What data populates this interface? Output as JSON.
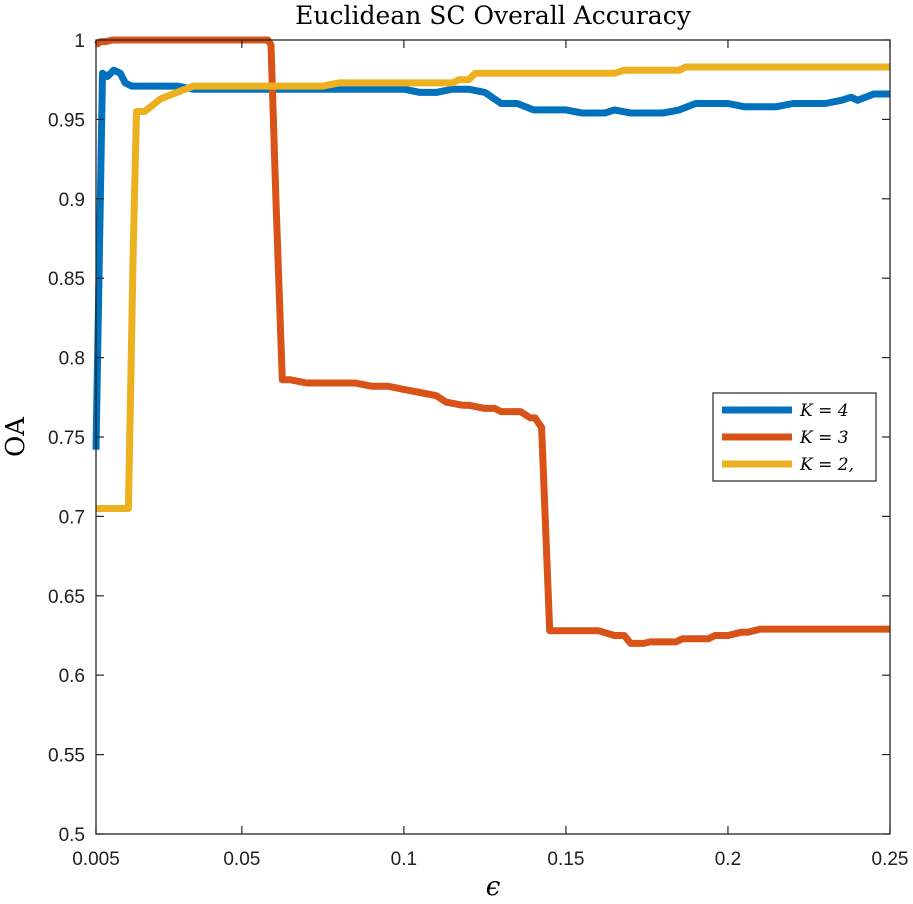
{
  "chart_data": {
    "type": "line",
    "title": "Euclidean SC Overall Accuracy",
    "xlabel": "ϵ",
    "ylabel": "OA",
    "xlim": [
      0.005,
      0.25
    ],
    "ylim": [
      0.5,
      1.0
    ],
    "x_ticks": [
      0.005,
      0.05,
      0.1,
      0.15,
      0.2,
      0.25
    ],
    "x_tick_labels": [
      "0.005",
      "0.05",
      "0.1",
      "0.15",
      "0.2",
      "0.25"
    ],
    "y_ticks": [
      0.5,
      0.55,
      0.6,
      0.65,
      0.7,
      0.75,
      0.8,
      0.85,
      0.9,
      0.95,
      1.0
    ],
    "y_tick_labels": [
      "0.5",
      "0.55",
      "0.6",
      "0.65",
      "0.7",
      "0.75",
      "0.8",
      "0.85",
      "0.9",
      "0.95",
      "1"
    ],
    "grid": false,
    "legend_position": "right",
    "series": [
      {
        "name": "K = 4",
        "color": "#0072BD",
        "x": [
          0.005,
          0.007,
          0.0085,
          0.0105,
          0.0125,
          0.014,
          0.016,
          0.02,
          0.025,
          0.03,
          0.035,
          0.04,
          0.05,
          0.06,
          0.07,
          0.08,
          0.09,
          0.1,
          0.105,
          0.11,
          0.115,
          0.12,
          0.125,
          0.13,
          0.135,
          0.14,
          0.145,
          0.15,
          0.155,
          0.16,
          0.162,
          0.165,
          0.17,
          0.175,
          0.18,
          0.185,
          0.19,
          0.195,
          0.2,
          0.205,
          0.21,
          0.215,
          0.22,
          0.225,
          0.23,
          0.235,
          0.238,
          0.24,
          0.245,
          0.25
        ],
        "y": [
          0.742,
          0.979,
          0.977,
          0.981,
          0.979,
          0.973,
          0.971,
          0.971,
          0.971,
          0.971,
          0.969,
          0.969,
          0.969,
          0.969,
          0.969,
          0.969,
          0.969,
          0.969,
          0.967,
          0.967,
          0.969,
          0.969,
          0.967,
          0.96,
          0.96,
          0.956,
          0.956,
          0.956,
          0.954,
          0.954,
          0.954,
          0.956,
          0.954,
          0.954,
          0.954,
          0.956,
          0.96,
          0.96,
          0.96,
          0.958,
          0.958,
          0.958,
          0.96,
          0.96,
          0.96,
          0.962,
          0.964,
          0.962,
          0.966,
          0.966
        ]
      },
      {
        "name": "K = 3",
        "color": "#D95319",
        "x": [
          0.005,
          0.0065,
          0.008,
          0.01,
          0.012,
          0.015,
          0.02,
          0.03,
          0.04,
          0.05,
          0.055,
          0.058,
          0.059,
          0.0605,
          0.0625,
          0.065,
          0.07,
          0.075,
          0.08,
          0.085,
          0.09,
          0.095,
          0.1,
          0.105,
          0.11,
          0.113,
          0.118,
          0.12,
          0.125,
          0.128,
          0.13,
          0.134,
          0.136,
          0.139,
          0.1405,
          0.1425,
          0.145,
          0.15,
          0.155,
          0.16,
          0.165,
          0.168,
          0.17,
          0.174,
          0.176,
          0.18,
          0.184,
          0.186,
          0.19,
          0.194,
          0.196,
          0.2,
          0.204,
          0.206,
          0.21,
          0.215,
          0.22,
          0.23,
          0.24,
          0.25
        ],
        "y": [
          0.997,
          0.999,
          0.999,
          1.0,
          1.0,
          1.0,
          1.0,
          1.0,
          1.0,
          1.0,
          1.0,
          1.0,
          0.997,
          0.9,
          0.786,
          0.786,
          0.784,
          0.784,
          0.784,
          0.784,
          0.782,
          0.782,
          0.78,
          0.778,
          0.776,
          0.772,
          0.77,
          0.77,
          0.768,
          0.768,
          0.766,
          0.766,
          0.766,
          0.762,
          0.762,
          0.756,
          0.628,
          0.628,
          0.628,
          0.628,
          0.625,
          0.625,
          0.62,
          0.62,
          0.621,
          0.621,
          0.621,
          0.623,
          0.623,
          0.623,
          0.625,
          0.625,
          0.627,
          0.627,
          0.629,
          0.629,
          0.629,
          0.629,
          0.629,
          0.629
        ]
      },
      {
        "name": "K = 2,",
        "color": "#EDB120",
        "x": [
          0.005,
          0.0105,
          0.015,
          0.0165,
          0.0175,
          0.02,
          0.025,
          0.03,
          0.035,
          0.04,
          0.05,
          0.06,
          0.07,
          0.075,
          0.08,
          0.085,
          0.09,
          0.1,
          0.11,
          0.115,
          0.117,
          0.12,
          0.122,
          0.125,
          0.13,
          0.14,
          0.15,
          0.16,
          0.165,
          0.168,
          0.17,
          0.18,
          0.185,
          0.187,
          0.19,
          0.2,
          0.21,
          0.22,
          0.23,
          0.24,
          0.25
        ],
        "y": [
          0.705,
          0.705,
          0.705,
          0.87,
          0.955,
          0.955,
          0.963,
          0.967,
          0.971,
          0.971,
          0.971,
          0.971,
          0.971,
          0.971,
          0.973,
          0.973,
          0.973,
          0.973,
          0.973,
          0.973,
          0.975,
          0.975,
          0.979,
          0.979,
          0.979,
          0.979,
          0.979,
          0.979,
          0.979,
          0.981,
          0.981,
          0.981,
          0.981,
          0.983,
          0.983,
          0.983,
          0.983,
          0.983,
          0.983,
          0.983,
          0.983
        ]
      }
    ]
  }
}
